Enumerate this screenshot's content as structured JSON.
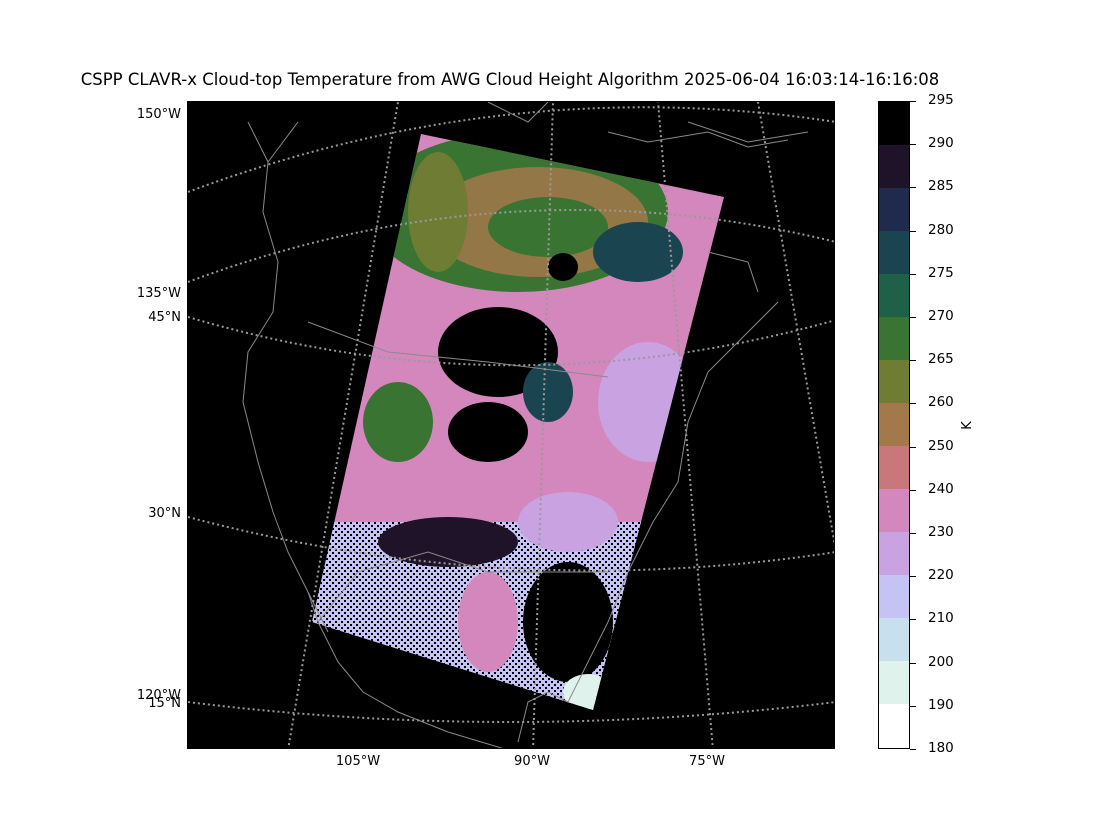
{
  "title": "CSPP CLAVR-x Cloud-top Temperature from AWG Cloud Height Algorithm 2025-06-04 16:03:14-16:16:08",
  "map": {
    "projection": "lambert-conformal",
    "background_color": "#000000",
    "coastline_color": "#8a8a8a",
    "graticule_color": "#9a9a9a",
    "lat_labels": [
      "45°N",
      "30°N",
      "15°N"
    ],
    "lon_labels_left": [
      "150°W",
      "135°W",
      "120°W"
    ],
    "lon_labels_bottom": [
      "105°W",
      "90°W",
      "75°W"
    ],
    "swath_description_colors": [
      "#d080c0",
      "#3a7a30",
      "#a07a4f",
      "#c5c2f4",
      "#1a1426",
      "#1a4a4a"
    ]
  },
  "colorbar": {
    "unit": "K",
    "tick_labels": [
      "295",
      "290",
      "285",
      "280",
      "275",
      "270",
      "265",
      "260",
      "250",
      "240",
      "230",
      "220",
      "210",
      "200",
      "190",
      "180"
    ],
    "bins": [
      {
        "from": 180,
        "to": 190,
        "color": "#ffffff"
      },
      {
        "from": 190,
        "to": 200,
        "color": "#dff3ec"
      },
      {
        "from": 200,
        "to": 210,
        "color": "#c8e0ee"
      },
      {
        "from": 210,
        "to": 220,
        "color": "#c4c3f3"
      },
      {
        "from": 220,
        "to": 230,
        "color": "#c9a2e2"
      },
      {
        "from": 230,
        "to": 240,
        "color": "#d487bd"
      },
      {
        "from": 240,
        "to": 250,
        "color": "#c8787a"
      },
      {
        "from": 250,
        "to": 260,
        "color": "#a3784b"
      },
      {
        "from": 260,
        "to": 265,
        "color": "#6f7c33"
      },
      {
        "from": 265,
        "to": 270,
        "color": "#3a7432"
      },
      {
        "from": 270,
        "to": 275,
        "color": "#1e6048"
      },
      {
        "from": 275,
        "to": 280,
        "color": "#1a4550"
      },
      {
        "from": 280,
        "to": 285,
        "color": "#1f2a4d"
      },
      {
        "from": 285,
        "to": 290,
        "color": "#1e1329"
      },
      {
        "from": 290,
        "to": 295,
        "color": "#000000"
      }
    ]
  }
}
